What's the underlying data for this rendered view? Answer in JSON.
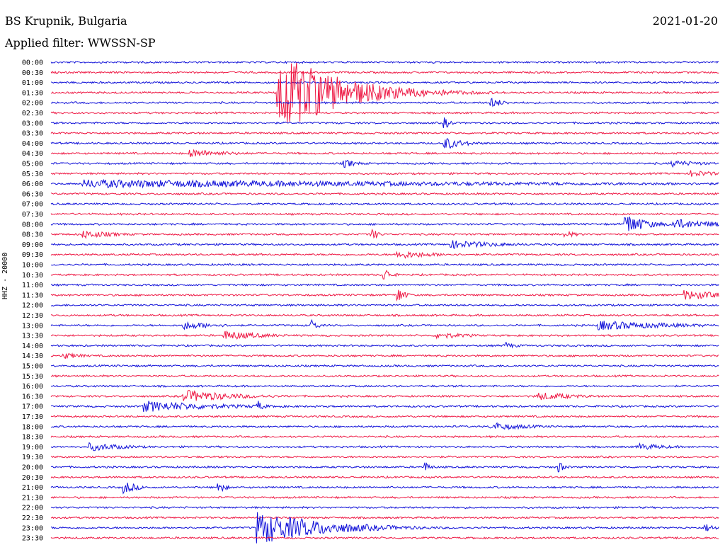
{
  "header": {
    "station": "BS Krupnik, Bulgaria",
    "date": "2021-01-20",
    "filter": "Applied filter: WWSSN-SP"
  },
  "chart_data": {
    "type": "line",
    "title": "BS Krupnik, Bulgaria",
    "ylabel": "HHZ - 20000",
    "colors": [
      "#1010d8",
      "#ee1844"
    ],
    "rows": [
      "00:00",
      "00:30",
      "01:00",
      "01:30",
      "02:00",
      "02:30",
      "03:00",
      "03:30",
      "04:00",
      "04:30",
      "05:00",
      "05:30",
      "06:00",
      "06:30",
      "07:00",
      "07:30",
      "08:00",
      "08:30",
      "09:00",
      "09:30",
      "10:00",
      "10:30",
      "11:00",
      "11:30",
      "12:00",
      "12:30",
      "13:00",
      "13:30",
      "14:00",
      "14:30",
      "15:00",
      "15:30",
      "16:00",
      "16:30",
      "17:00",
      "17:30",
      "18:00",
      "18:30",
      "19:00",
      "19:30",
      "20:00",
      "20:30",
      "21:00",
      "21:30",
      "22:00",
      "22:30",
      "23:00",
      "23:30"
    ],
    "events": [
      {
        "row": 3,
        "pos": 0.34,
        "amp": 60,
        "dur": 0.09
      },
      {
        "row": 46,
        "pos": 0.31,
        "amp": 24,
        "dur": 0.1
      },
      {
        "row": 4,
        "pos": 0.66,
        "amp": 7,
        "dur": 0.02
      },
      {
        "row": 6,
        "pos": 0.59,
        "amp": 8,
        "dur": 0.01
      },
      {
        "row": 8,
        "pos": 0.59,
        "amp": 9,
        "dur": 0.03
      },
      {
        "row": 9,
        "pos": 0.21,
        "amp": 6,
        "dur": 0.06
      },
      {
        "row": 10,
        "pos": 0.44,
        "amp": 6,
        "dur": 0.02
      },
      {
        "row": 10,
        "pos": 0.93,
        "amp": 5,
        "dur": 0.05
      },
      {
        "row": 11,
        "pos": 0.96,
        "amp": 5,
        "dur": 0.04
      },
      {
        "row": 12,
        "pos": 0.05,
        "amp": 6,
        "dur": 0.7
      },
      {
        "row": 16,
        "pos": 0.86,
        "amp": 16,
        "dur": 0.03
      },
      {
        "row": 16,
        "pos": 0.93,
        "amp": 8,
        "dur": 0.07
      },
      {
        "row": 17,
        "pos": 0.05,
        "amp": 6,
        "dur": 0.05
      },
      {
        "row": 17,
        "pos": 0.48,
        "amp": 9,
        "dur": 0.01
      },
      {
        "row": 17,
        "pos": 0.77,
        "amp": 5,
        "dur": 0.02
      },
      {
        "row": 18,
        "pos": 0.6,
        "amp": 6,
        "dur": 0.08
      },
      {
        "row": 19,
        "pos": 0.52,
        "amp": 6,
        "dur": 0.06
      },
      {
        "row": 21,
        "pos": 0.5,
        "amp": 10,
        "dur": 0.01
      },
      {
        "row": 23,
        "pos": 0.52,
        "amp": 12,
        "dur": 0.01
      },
      {
        "row": 23,
        "pos": 0.95,
        "amp": 7,
        "dur": 0.07
      },
      {
        "row": 26,
        "pos": 0.2,
        "amp": 6,
        "dur": 0.05
      },
      {
        "row": 26,
        "pos": 0.39,
        "amp": 9,
        "dur": 0.01
      },
      {
        "row": 26,
        "pos": 0.82,
        "amp": 7,
        "dur": 0.12
      },
      {
        "row": 27,
        "pos": 0.26,
        "amp": 7,
        "dur": 0.06
      },
      {
        "row": 27,
        "pos": 0.58,
        "amp": 5,
        "dur": 0.05
      },
      {
        "row": 28,
        "pos": 0.68,
        "amp": 5,
        "dur": 0.02
      },
      {
        "row": 29,
        "pos": 0.02,
        "amp": 5,
        "dur": 0.03
      },
      {
        "row": 33,
        "pos": 0.2,
        "amp": 9,
        "dur": 0.08
      },
      {
        "row": 33,
        "pos": 0.73,
        "amp": 6,
        "dur": 0.06
      },
      {
        "row": 34,
        "pos": 0.14,
        "amp": 8,
        "dur": 0.12
      },
      {
        "row": 34,
        "pos": 0.31,
        "amp": 8,
        "dur": 0.01
      },
      {
        "row": 36,
        "pos": 0.66,
        "amp": 6,
        "dur": 0.06
      },
      {
        "row": 38,
        "pos": 0.06,
        "amp": 6,
        "dur": 0.06
      },
      {
        "row": 38,
        "pos": 0.88,
        "amp": 5,
        "dur": 0.05
      },
      {
        "row": 40,
        "pos": 0.56,
        "amp": 7,
        "dur": 0.01
      },
      {
        "row": 40,
        "pos": 0.76,
        "amp": 8,
        "dur": 0.01
      },
      {
        "row": 42,
        "pos": 0.11,
        "amp": 9,
        "dur": 0.02
      },
      {
        "row": 42,
        "pos": 0.25,
        "amp": 10,
        "dur": 0.01
      },
      {
        "row": 46,
        "pos": 0.98,
        "amp": 6,
        "dur": 0.02
      }
    ]
  }
}
